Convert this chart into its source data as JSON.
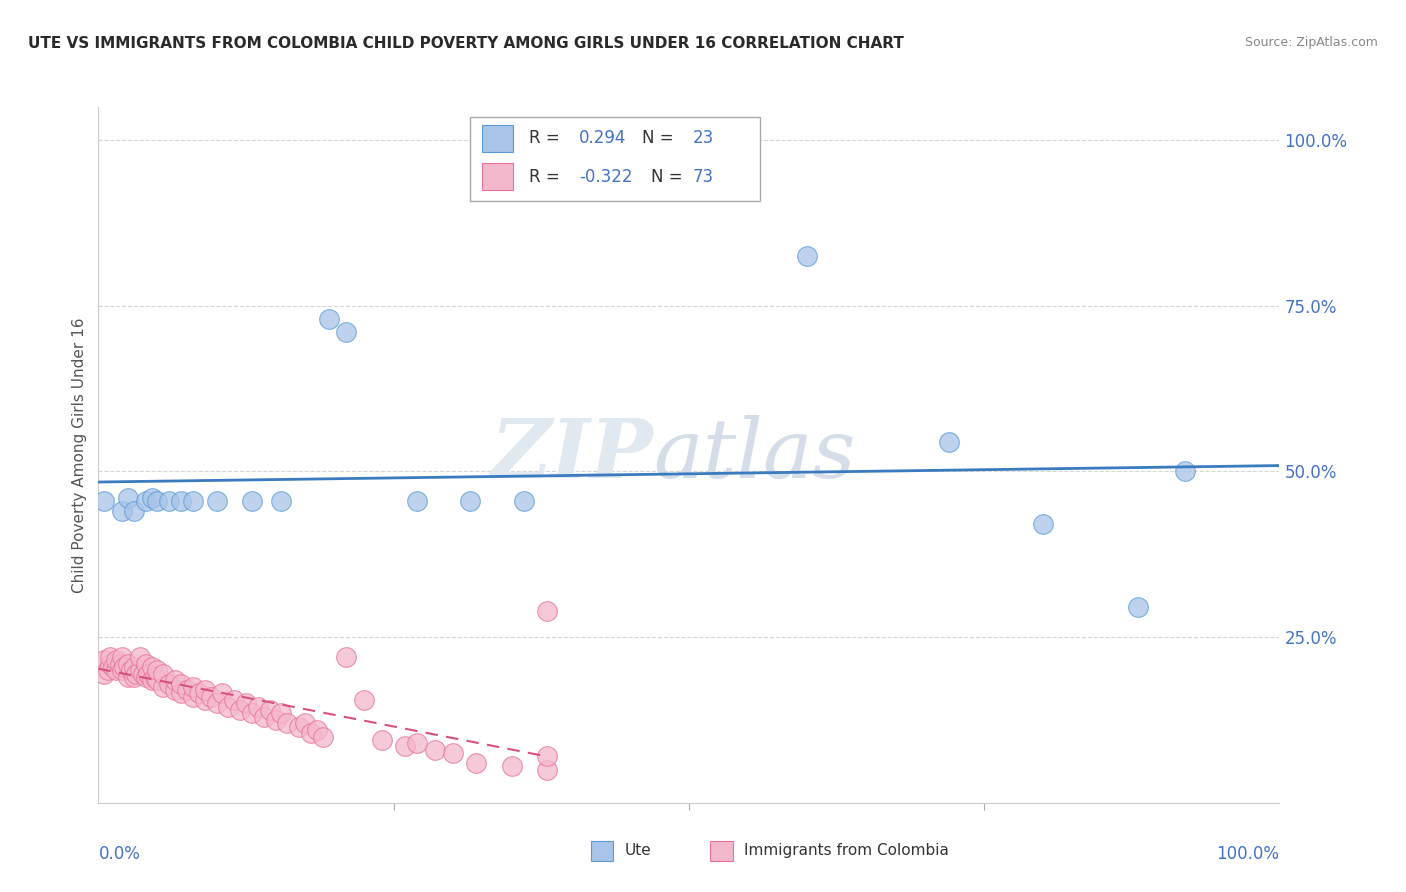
{
  "title": "UTE VS IMMIGRANTS FROM COLOMBIA CHILD POVERTY AMONG GIRLS UNDER 16 CORRELATION CHART",
  "source": "Source: ZipAtlas.com",
  "ylabel": "Child Poverty Among Girls Under 16",
  "ute_color": "#a8c4e8",
  "ute_edge_color": "#5b9bd5",
  "colombia_color": "#f4b8cc",
  "colombia_edge_color": "#e8719a",
  "ute_line_color": "#3a7abf",
  "colombia_line_color": "#d94f7e",
  "background_color": "#ffffff",
  "grid_color": "#cccccc",
  "tick_color": "#4472c4",
  "ute_scatter_x": [
    0.005,
    0.02,
    0.025,
    0.03,
    0.04,
    0.045,
    0.05,
    0.06,
    0.07,
    0.08,
    0.1,
    0.13,
    0.155,
    0.195,
    0.21,
    0.27,
    0.315,
    0.36,
    0.6,
    0.72,
    0.8,
    0.88,
    0.92
  ],
  "ute_scatter_y": [
    0.455,
    0.44,
    0.46,
    0.44,
    0.455,
    0.46,
    0.455,
    0.455,
    0.455,
    0.455,
    0.455,
    0.455,
    0.455,
    0.73,
    0.71,
    0.455,
    0.455,
    0.455,
    0.825,
    0.545,
    0.42,
    0.295,
    0.5
  ],
  "colombia_scatter_x": [
    0.005,
    0.005,
    0.008,
    0.01,
    0.01,
    0.012,
    0.015,
    0.015,
    0.018,
    0.02,
    0.02,
    0.022,
    0.025,
    0.025,
    0.028,
    0.03,
    0.03,
    0.032,
    0.035,
    0.035,
    0.038,
    0.04,
    0.04,
    0.042,
    0.045,
    0.045,
    0.048,
    0.05,
    0.05,
    0.055,
    0.055,
    0.06,
    0.065,
    0.065,
    0.07,
    0.07,
    0.075,
    0.08,
    0.08,
    0.085,
    0.09,
    0.09,
    0.095,
    0.1,
    0.105,
    0.11,
    0.115,
    0.12,
    0.125,
    0.13,
    0.135,
    0.14,
    0.145,
    0.15,
    0.155,
    0.16,
    0.17,
    0.175,
    0.18,
    0.185,
    0.19,
    0.21,
    0.225,
    0.24,
    0.26,
    0.27,
    0.285,
    0.3,
    0.32,
    0.35,
    0.38,
    0.38,
    0.38
  ],
  "colombia_scatter_y": [
    0.195,
    0.215,
    0.2,
    0.21,
    0.22,
    0.205,
    0.2,
    0.215,
    0.21,
    0.2,
    0.22,
    0.205,
    0.19,
    0.21,
    0.2,
    0.19,
    0.205,
    0.195,
    0.2,
    0.22,
    0.195,
    0.19,
    0.21,
    0.195,
    0.185,
    0.205,
    0.19,
    0.185,
    0.2,
    0.175,
    0.195,
    0.18,
    0.17,
    0.185,
    0.165,
    0.18,
    0.17,
    0.16,
    0.175,
    0.165,
    0.155,
    0.17,
    0.16,
    0.15,
    0.165,
    0.145,
    0.155,
    0.14,
    0.15,
    0.135,
    0.145,
    0.13,
    0.14,
    0.125,
    0.135,
    0.12,
    0.115,
    0.12,
    0.105,
    0.11,
    0.1,
    0.22,
    0.155,
    0.095,
    0.085,
    0.09,
    0.08,
    0.075,
    0.06,
    0.055,
    0.05,
    0.07,
    0.29
  ],
  "watermark_zip": "ZIP",
  "watermark_atlas": "atlas"
}
